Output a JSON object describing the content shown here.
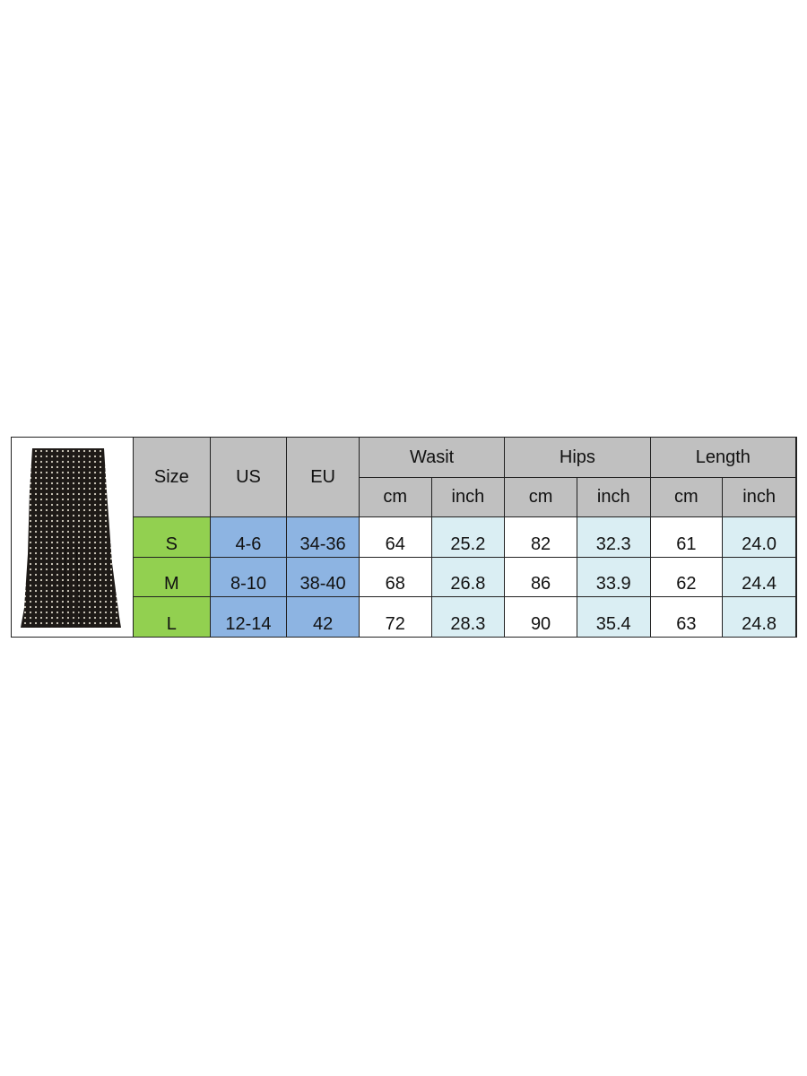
{
  "colors": {
    "header": "#c0c0c0",
    "size": "#92d050",
    "region": "#8db4e2",
    "cm": "#ffffff",
    "inch": "#daeef3"
  },
  "product_image": "polka-dot-skirt",
  "headers": {
    "size": "Size",
    "us": "US",
    "eu": "EU",
    "waist": "Wasit",
    "hips": "Hips",
    "length": "Length",
    "cm": "cm",
    "inch": "inch"
  },
  "rows": [
    {
      "size": "S",
      "us": "4-6",
      "eu": "34-36",
      "waist_cm": "64",
      "waist_in": "25.2",
      "hips_cm": "82",
      "hips_in": "32.3",
      "length_cm": "61",
      "length_in": "24.0"
    },
    {
      "size": "M",
      "us": "8-10",
      "eu": "38-40",
      "waist_cm": "68",
      "waist_in": "26.8",
      "hips_cm": "86",
      "hips_in": "33.9",
      "length_cm": "62",
      "length_in": "24.4"
    },
    {
      "size": "L",
      "us": "12-14",
      "eu": "42",
      "waist_cm": "72",
      "waist_in": "28.3",
      "hips_cm": "90",
      "hips_in": "35.4",
      "length_cm": "63",
      "length_in": "24.8"
    }
  ]
}
